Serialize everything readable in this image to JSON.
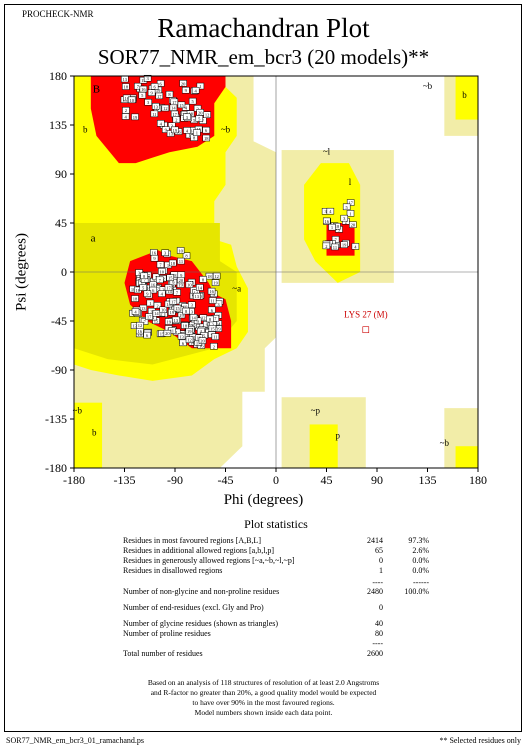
{
  "header": {
    "program": "PROCHECK-NMR",
    "title": "Ramachandran Plot",
    "subtitle": "SOR77_NMR_em_bcr3 (20 models)**"
  },
  "colors": {
    "most_favoured": "#ff0000",
    "additional_allowed": "#ffff00",
    "generously_allowed": "#f2eda8",
    "disallowed": "#ffffff",
    "background_core": "#e6e600"
  },
  "chart_data": {
    "type": "scatter",
    "xlabel": "Phi (degrees)",
    "ylabel": "Psi (degrees)",
    "xlim": [
      -180,
      180
    ],
    "ylim": [
      -180,
      180
    ],
    "xticks": [
      "-180",
      "-135",
      "-90",
      "-45",
      "0",
      "45",
      "90",
      "135",
      "180"
    ],
    "yticks": [
      "180",
      "135",
      "90",
      "45",
      "0",
      "-45",
      "-90",
      "-135",
      "-180"
    ],
    "region_labels": [
      {
        "text": "B",
        "phi": -160,
        "psi": 165
      },
      {
        "text": "b",
        "phi": -170,
        "psi": 128
      },
      {
        "text": "~b",
        "phi": -45,
        "psi": 128
      },
      {
        "text": "~l",
        "phi": 45,
        "psi": 108
      },
      {
        "text": "~b",
        "phi": 135,
        "psi": 168
      },
      {
        "text": "b",
        "phi": 168,
        "psi": 160
      },
      {
        "text": "a",
        "phi": -163,
        "psi": 28
      },
      {
        "text": "~a",
        "phi": -35,
        "psi": -18
      },
      {
        "text": "l",
        "phi": 66,
        "psi": 80
      },
      {
        "text": "~b",
        "phi": -177,
        "psi": -130
      },
      {
        "text": "b",
        "phi": -162,
        "psi": -150
      },
      {
        "text": "~p",
        "phi": 35,
        "psi": -130
      },
      {
        "text": "p",
        "phi": 55,
        "psi": -153
      },
      {
        "text": "~b",
        "phi": 150,
        "psi": -160
      }
    ],
    "highlight_label": {
      "text": "LYS 27 (M)",
      "phi": 80,
      "psi": -42
    },
    "highlight_point": {
      "phi": 80,
      "psi": -53
    },
    "point_labels": [
      "1",
      "2",
      "3",
      "4",
      "5",
      "6",
      "7",
      "8",
      "9",
      "10",
      "11",
      "12",
      "13",
      "14",
      "15",
      "16",
      "17",
      "18",
      "19",
      "20"
    ]
  },
  "stats": {
    "title": "Plot statistics",
    "rows": [
      {
        "label": "Residues in most favoured regions  [A,B,L]",
        "count": "2414",
        "pct": "97.3%"
      },
      {
        "label": "Residues in additional allowed regions  [a,b,l,p]",
        "count": "65",
        "pct": "2.6%"
      },
      {
        "label": "Residues in generously allowed regions  [~a,~b,~l,~p]",
        "count": "0",
        "pct": "0.0%"
      },
      {
        "label": "Residues in disallowed regions",
        "count": "1",
        "pct": "0.0%"
      },
      {
        "label": "",
        "count": "----",
        "pct": "------"
      },
      {
        "label": "Number of non-glycine and non-proline residues",
        "count": "2480",
        "pct": "100.0%"
      },
      {
        "label": "Number of end-residues (excl. Gly and Pro)",
        "count": "0",
        "pct": ""
      },
      {
        "label": "Number of glycine residues (shown as triangles)",
        "count": "40",
        "pct": ""
      },
      {
        "label": "Number of proline residues",
        "count": "80",
        "pct": ""
      },
      {
        "label": "",
        "count": "----",
        "pct": ""
      },
      {
        "label": "Total number of residues",
        "count": "2600",
        "pct": ""
      }
    ]
  },
  "footnote": [
    "Based on an analysis of 118 structures of resolution of at least 2.0 Angstroms",
    "and R-factor no greater than 20%, a good quality model would be expected",
    "to have over 90% in the most favoured regions.",
    "Model numbers shown inside each data point."
  ],
  "footer": {
    "filename": "SOR77_NMR_em_bcr3_01_ramachand.ps",
    "selected_note": "** Selected residues only"
  }
}
